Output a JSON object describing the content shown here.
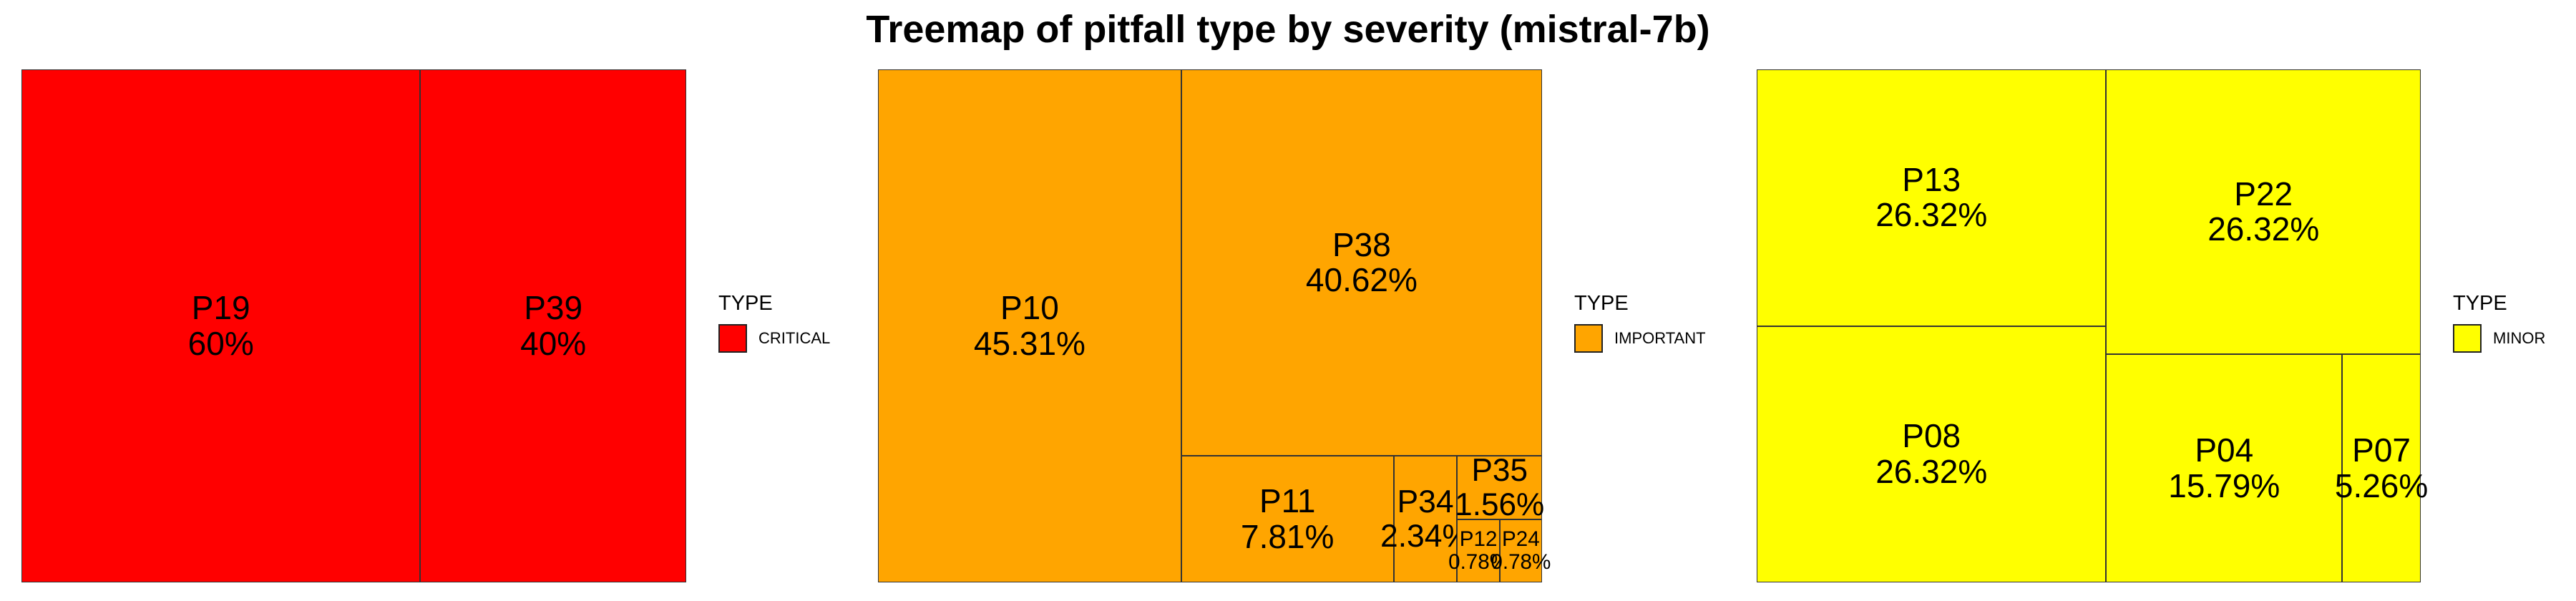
{
  "title": "Treemap of pitfall type by severity (mistral-7b)",
  "colors": {
    "CRITICAL": "#ff0000",
    "IMPORTANT": "#ffa500",
    "MINOR": "#ffff00",
    "border": "#333333"
  },
  "legend": {
    "title": "TYPE",
    "items": [
      "CRITICAL",
      "IMPORTANT",
      "MINOR"
    ]
  },
  "chart_data": [
    {
      "type": "treemap",
      "group": "CRITICAL",
      "items": [
        {
          "label": "P19",
          "value": 60,
          "display": "60%"
        },
        {
          "label": "P39",
          "value": 40,
          "display": "40%"
        }
      ]
    },
    {
      "type": "treemap",
      "group": "IMPORTANT",
      "items": [
        {
          "label": "P10",
          "value": 45.31,
          "display": "45.31%"
        },
        {
          "label": "P38",
          "value": 40.62,
          "display": "40.62%"
        },
        {
          "label": "P11",
          "value": 7.81,
          "display": "7.81%"
        },
        {
          "label": "P34",
          "value": 2.34,
          "display": "2.34%"
        },
        {
          "label": "P35",
          "value": 1.56,
          "display": "1.56%"
        },
        {
          "label": "P12",
          "value": 0.78,
          "display": "0.78%"
        },
        {
          "label": "P24",
          "value": 0.78,
          "display": "0.78%"
        }
      ]
    },
    {
      "type": "treemap",
      "group": "MINOR",
      "items": [
        {
          "label": "P13",
          "value": 26.32,
          "display": "26.32%"
        },
        {
          "label": "P08",
          "value": 26.32,
          "display": "26.32%"
        },
        {
          "label": "P22",
          "value": 26.32,
          "display": "26.32%"
        },
        {
          "label": "P04",
          "value": 15.79,
          "display": "15.79%"
        },
        {
          "label": "P07",
          "value": 5.26,
          "display": "5.26%"
        }
      ]
    }
  ]
}
